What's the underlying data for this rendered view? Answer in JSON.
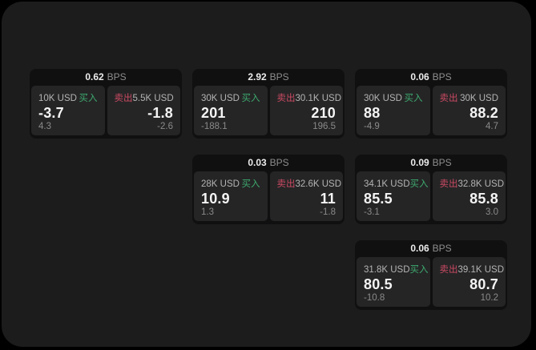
{
  "labels": {
    "bps_unit": "BPS",
    "buy": "买入",
    "sell": "卖出"
  },
  "colors": {
    "window_bg": "#1c1c1c",
    "card_bg": "#101011",
    "panel_bg": "#252526",
    "buy_green": "#3eaa6e",
    "sell_red": "#cb4a62"
  },
  "cards": [
    {
      "bps": "0.62",
      "buy": {
        "amount": "10K USD",
        "price": "-3.7",
        "change": "4.3"
      },
      "sell": {
        "amount": "5.5K USD",
        "price": "-1.8",
        "change": "-2.6"
      }
    },
    {
      "bps": "2.92",
      "buy": {
        "amount": "30K USD",
        "price": "201",
        "change": "-188.1"
      },
      "sell": {
        "amount": "30.1K USD",
        "price": "210",
        "change": "196.5"
      }
    },
    {
      "bps": "0.06",
      "buy": {
        "amount": "30K USD",
        "price": "88",
        "change": "-4.9"
      },
      "sell": {
        "amount": "30K USD",
        "price": "88.2",
        "change": "4.7"
      }
    },
    {
      "bps": "0.03",
      "buy": {
        "amount": "28K USD",
        "price": "10.9",
        "change": "1.3"
      },
      "sell": {
        "amount": "32.6K USD",
        "price": "11",
        "change": "-1.8"
      }
    },
    {
      "bps": "0.09",
      "buy": {
        "amount": "34.1K USD",
        "price": "85.5",
        "change": "-3.1"
      },
      "sell": {
        "amount": "32.8K USD",
        "price": "85.8",
        "change": "3.0"
      }
    },
    {
      "bps": "0.06",
      "buy": {
        "amount": "31.8K USD",
        "price": "80.5",
        "change": "-10.8"
      },
      "sell": {
        "amount": "39.1K USD",
        "price": "80.7",
        "change": "10.2"
      }
    }
  ]
}
